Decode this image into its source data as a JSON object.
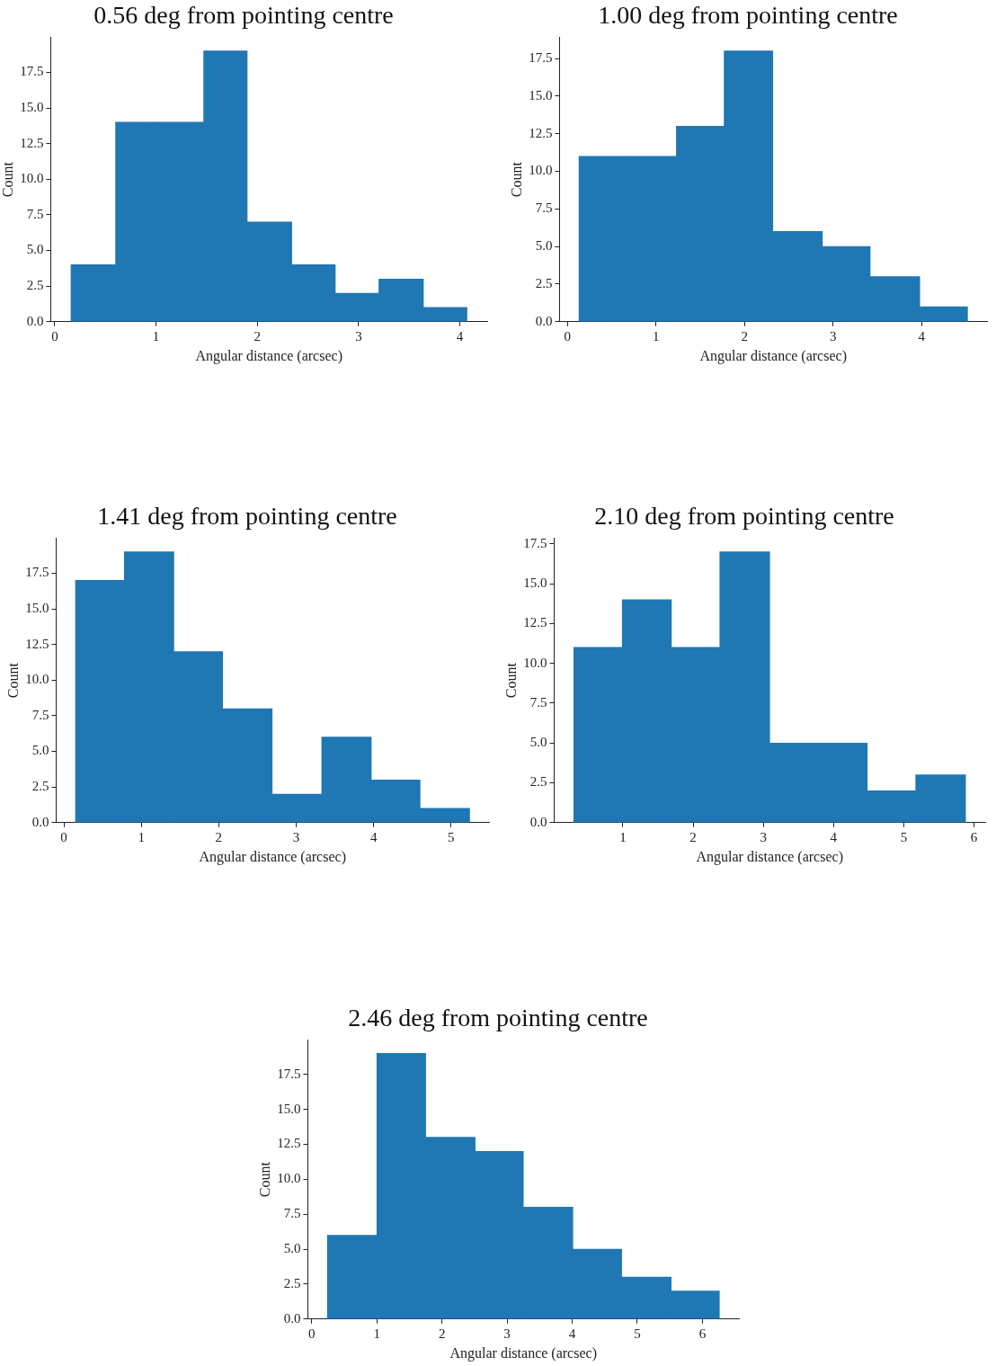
{
  "chart_data": [
    {
      "type": "histogram",
      "title": "0.56 deg from pointing centre",
      "xlabel": "Angular distance (arcsec)",
      "ylabel": "Count",
      "color": "#1f77b4",
      "grid": false,
      "bins": [
        0.16,
        0.6,
        1.03,
        1.47,
        1.9,
        2.34,
        2.77,
        3.2,
        3.64,
        4.07
      ],
      "values": [
        4,
        14,
        14,
        19,
        7,
        4,
        2,
        3,
        1
      ],
      "xlim": [
        -0.04,
        4.27
      ],
      "xticks": [
        0,
        1,
        2,
        3,
        4
      ],
      "ylim": [
        0,
        19.95
      ],
      "yticks": [
        {
          "value": 0,
          "label": "0.0"
        },
        {
          "value": 2.5,
          "label": "2.5"
        },
        {
          "value": 5,
          "label": "5.0"
        },
        {
          "value": 7.5,
          "label": "7.5"
        },
        {
          "value": 10,
          "label": "10.0"
        },
        {
          "value": 12.5,
          "label": "12.5"
        },
        {
          "value": 15,
          "label": "15.0"
        },
        {
          "value": 17.5,
          "label": "17.5"
        }
      ]
    },
    {
      "type": "histogram",
      "title": "1.00 deg from pointing centre",
      "xlabel": "Angular distance (arcsec)",
      "ylabel": "Count",
      "color": "#1f77b4",
      "grid": false,
      "bins": [
        0.13,
        0.67,
        1.23,
        1.77,
        2.32,
        2.88,
        3.42,
        3.98,
        4.52
      ],
      "values": [
        11,
        11,
        13,
        18,
        6,
        5,
        3,
        1
      ],
      "xlim": [
        -0.09,
        4.74
      ],
      "xticks": [
        0,
        1,
        2,
        3,
        4
      ],
      "ylim": [
        0,
        18.9
      ],
      "yticks": [
        {
          "value": 0,
          "label": "0.0"
        },
        {
          "value": 2.5,
          "label": "2.5"
        },
        {
          "value": 5,
          "label": "5.0"
        },
        {
          "value": 7.5,
          "label": "7.5"
        },
        {
          "value": 10,
          "label": "10.0"
        },
        {
          "value": 12.5,
          "label": "12.5"
        },
        {
          "value": 15,
          "label": "15.0"
        },
        {
          "value": 17.5,
          "label": "17.5"
        }
      ]
    },
    {
      "type": "histogram",
      "title": "1.41 deg from pointing centre",
      "xlabel": "Angular distance (arcsec)",
      "ylabel": "Count",
      "color": "#1f77b4",
      "grid": false,
      "bins": [
        0.15,
        0.78,
        1.42,
        2.05,
        2.69,
        3.33,
        3.97,
        4.6,
        5.24
      ],
      "values": [
        17,
        19,
        12,
        8,
        2,
        6,
        3,
        1
      ],
      "xlim": [
        -0.1,
        5.49
      ],
      "xticks": [
        0,
        1,
        2,
        3,
        4,
        5
      ],
      "ylim": [
        0,
        19.95
      ],
      "yticks": [
        {
          "value": 0,
          "label": "0.0"
        },
        {
          "value": 2.5,
          "label": "2.5"
        },
        {
          "value": 5,
          "label": "5.0"
        },
        {
          "value": 7.5,
          "label": "7.5"
        },
        {
          "value": 10,
          "label": "10.0"
        },
        {
          "value": 12.5,
          "label": "12.5"
        },
        {
          "value": 15,
          "label": "15.0"
        },
        {
          "value": 17.5,
          "label": "17.5"
        }
      ]
    },
    {
      "type": "histogram",
      "title": "2.10 deg from pointing centre",
      "xlabel": "Angular distance (arcsec)",
      "ylabel": "Count",
      "color": "#1f77b4",
      "grid": false,
      "bins": [
        0.3,
        0.99,
        1.69,
        2.38,
        3.09,
        3.78,
        4.48,
        5.17,
        5.88
      ],
      "values": [
        11,
        14,
        11,
        17,
        5,
        5,
        2,
        3
      ],
      "xlim": [
        0.02,
        6.16
      ],
      "xticks": [
        1,
        2,
        3,
        4,
        5,
        6
      ],
      "ylim": [
        0,
        17.85
      ],
      "yticks": [
        {
          "value": 0,
          "label": "0.0"
        },
        {
          "value": 2.5,
          "label": "2.5"
        },
        {
          "value": 5,
          "label": "5.0"
        },
        {
          "value": 7.5,
          "label": "7.5"
        },
        {
          "value": 10,
          "label": "10.0"
        },
        {
          "value": 12.5,
          "label": "12.5"
        },
        {
          "value": 15,
          "label": "15.0"
        },
        {
          "value": 17.5,
          "label": "17.5"
        }
      ]
    },
    {
      "type": "histogram",
      "title": "2.46 deg from pointing centre",
      "xlabel": "Angular distance (arcsec)",
      "ylabel": "Count",
      "color": "#1f77b4",
      "grid": false,
      "bins": [
        0.24,
        1,
        1.75,
        2.51,
        3.25,
        4.01,
        4.76,
        5.52,
        6.26
      ],
      "values": [
        6,
        19,
        13,
        12,
        8,
        5,
        3,
        2
      ],
      "xlim": [
        -0.06,
        6.56
      ],
      "xticks": [
        0,
        1,
        2,
        3,
        4,
        5,
        6
      ],
      "ylim": [
        0,
        19.95
      ],
      "yticks": [
        {
          "value": 0,
          "label": "0.0"
        },
        {
          "value": 2.5,
          "label": "2.5"
        },
        {
          "value": 5,
          "label": "5.0"
        },
        {
          "value": 7.5,
          "label": "7.5"
        },
        {
          "value": 10,
          "label": "10.0"
        },
        {
          "value": 12.5,
          "label": "12.5"
        },
        {
          "value": 15,
          "label": "15.0"
        },
        {
          "value": 17.5,
          "label": "17.5"
        }
      ]
    }
  ]
}
